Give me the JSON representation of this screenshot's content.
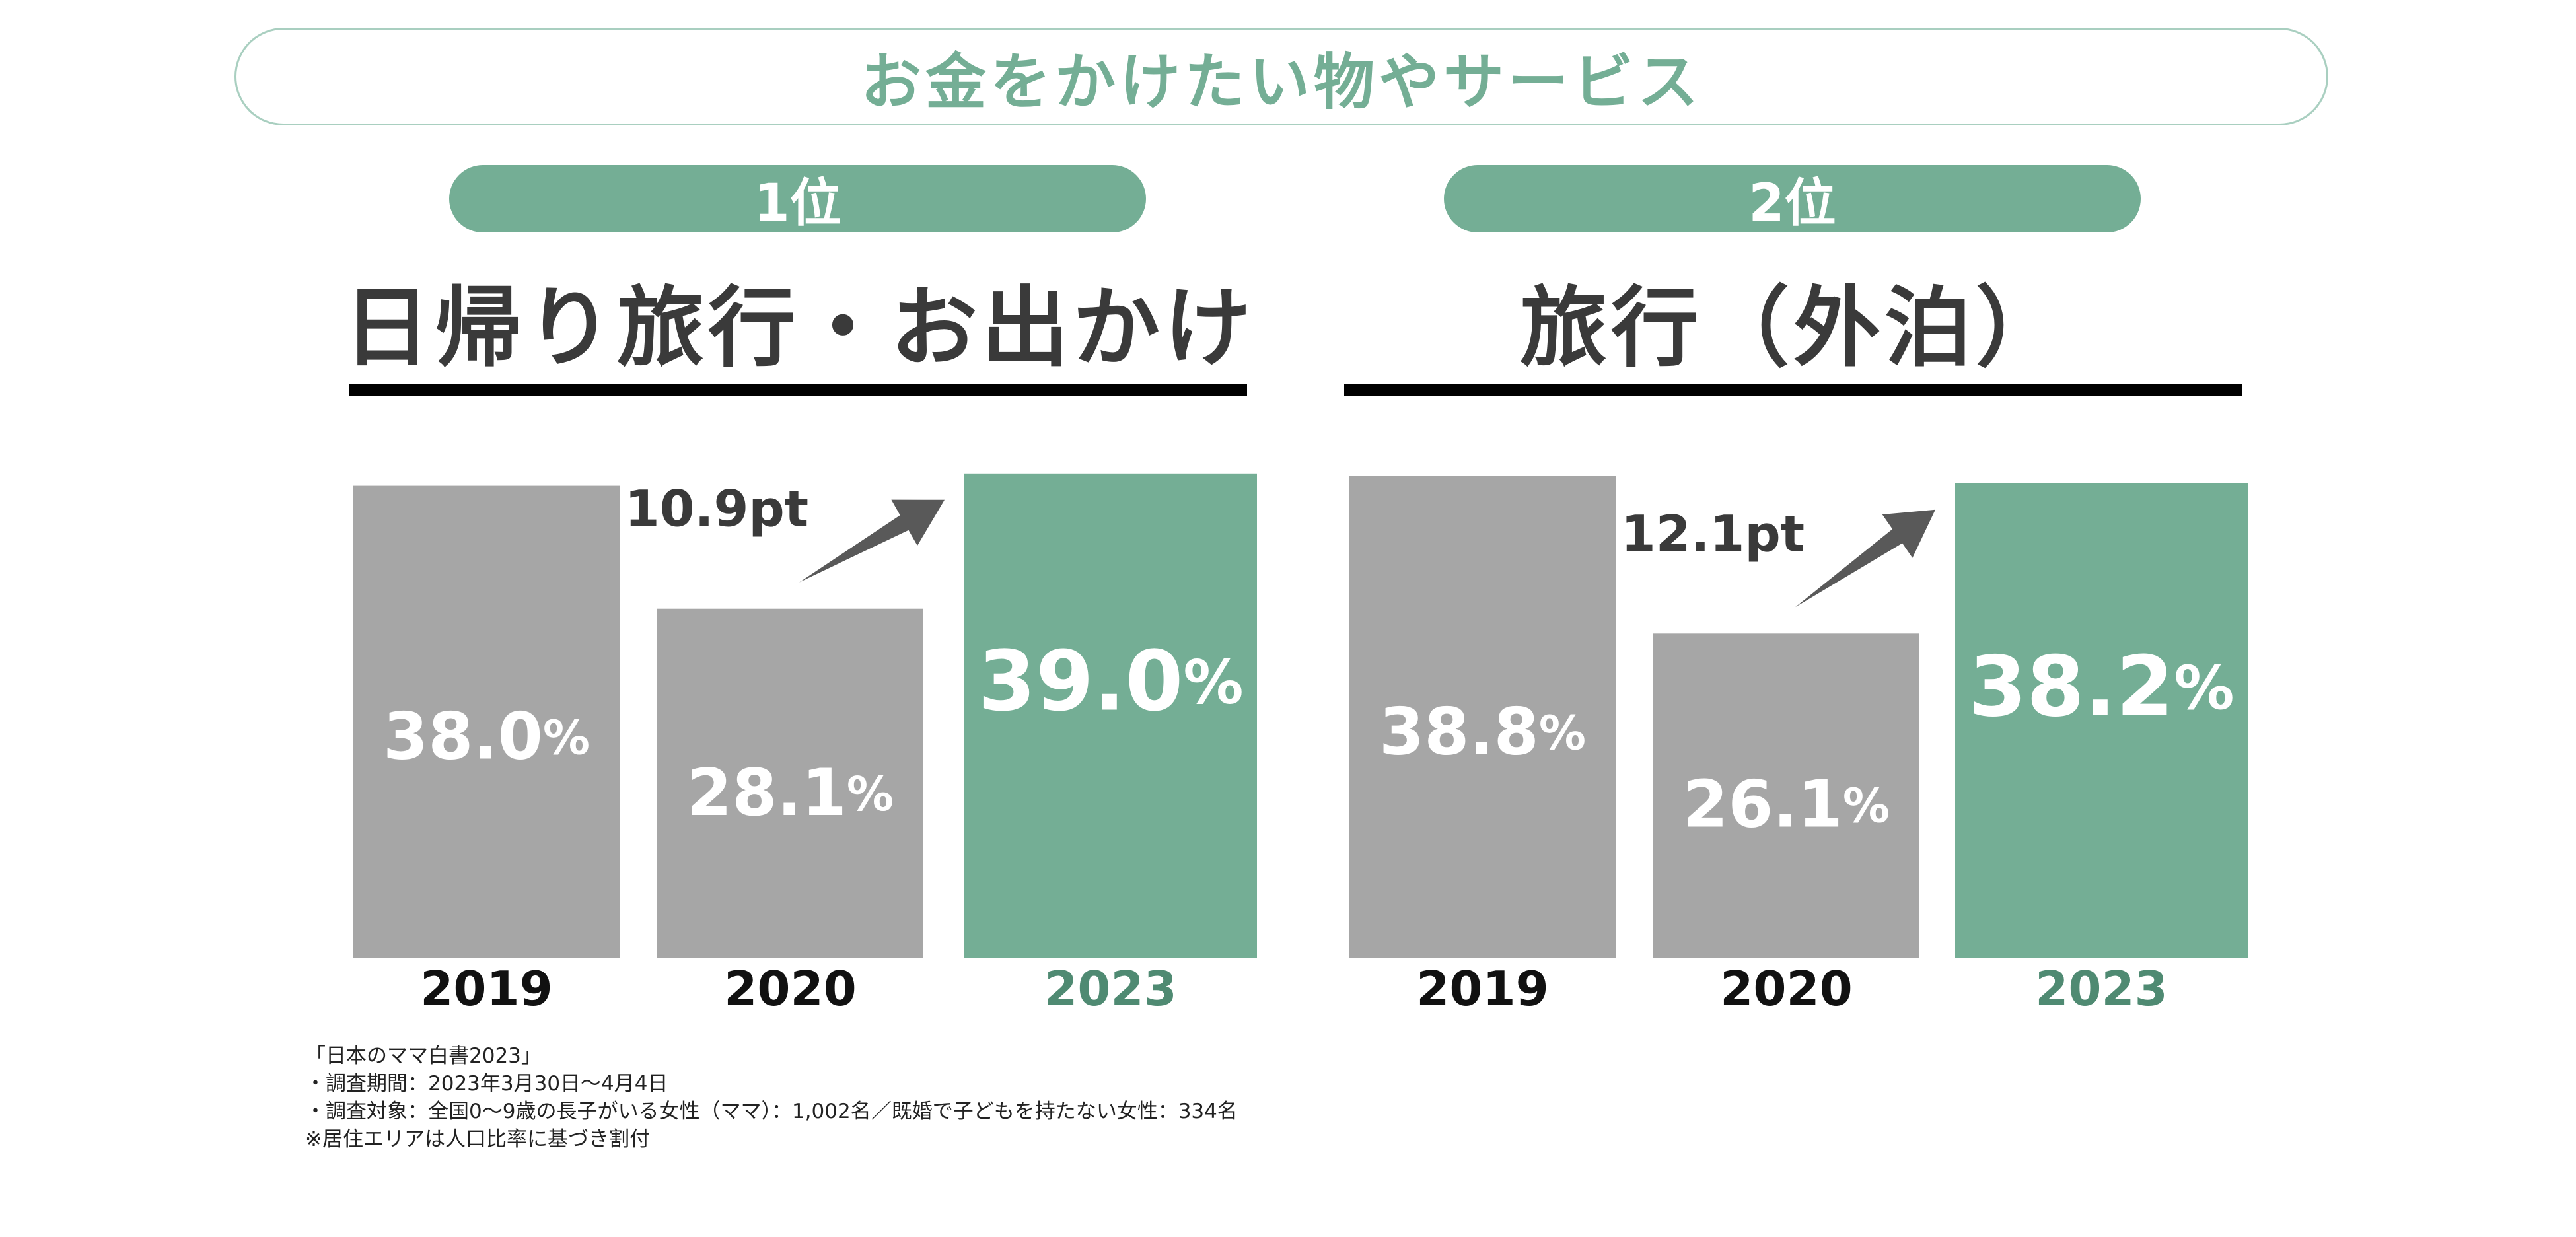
{
  "title": "お金をかけたい物やサービス",
  "colors": {
    "accent": "#74ae95",
    "gray": "#a6a6a6",
    "arrow": "#595959",
    "text": "#3a3a3a"
  },
  "chart_data": [
    {
      "type": "bar",
      "rank": "1位",
      "title": "日帰り旅行・お出かけ",
      "categories": [
        "2019",
        "2020",
        "2023"
      ],
      "values": [
        38.0,
        28.1,
        39.0
      ],
      "value_labels": [
        "38.0",
        "28.1",
        "39.0"
      ],
      "unit": "%",
      "highlight_index": 2,
      "delta_label": "10.9pt",
      "ylim": [
        0,
        40
      ],
      "xlabel": "",
      "ylabel": ""
    },
    {
      "type": "bar",
      "rank": "2位",
      "title": "旅行（外泊）",
      "categories": [
        "2019",
        "2020",
        "2023"
      ],
      "values": [
        38.8,
        26.1,
        38.2
      ],
      "value_labels": [
        "38.8",
        "26.1",
        "38.2"
      ],
      "unit": "%",
      "highlight_index": 2,
      "delta_label": "12.1pt",
      "ylim": [
        0,
        40
      ],
      "xlabel": "",
      "ylabel": ""
    }
  ],
  "footnotes": [
    "「日本のママ白書2023」",
    "・調査期間：2023年3月30日～4月4日",
    "・調査対象：全国0～9歳の長子がいる女性（ママ）：1,002名／既婚で子どもを持たない女性：334名",
    "※居住エリアは人口比率に基づき割付"
  ]
}
